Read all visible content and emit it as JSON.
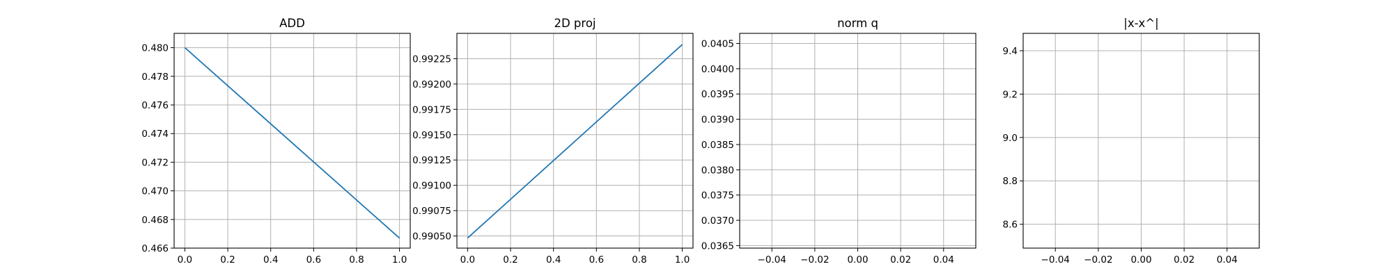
{
  "chart_data": [
    {
      "type": "line",
      "title": "ADD",
      "xlabel": "",
      "ylabel": "",
      "grid": true,
      "xlim": [
        -0.05,
        1.05
      ],
      "ylim": [
        0.466,
        0.481
      ],
      "xticks": [
        0.0,
        0.2,
        0.4,
        0.6,
        0.8,
        1.0
      ],
      "xtick_labels": [
        "0.0",
        "0.2",
        "0.4",
        "0.6",
        "0.8",
        "1.0"
      ],
      "yticks": [
        0.466,
        0.468,
        0.47,
        0.472,
        0.474,
        0.476,
        0.478,
        0.48
      ],
      "ytick_labels": [
        "0.466",
        "0.468",
        "0.470",
        "0.472",
        "0.474",
        "0.476",
        "0.478",
        "0.480"
      ],
      "series": [
        {
          "x": [
            0.0,
            1.0
          ],
          "y": [
            0.48,
            0.4667
          ],
          "color": "#1f77b4"
        }
      ]
    },
    {
      "type": "line",
      "title": "2D proj",
      "xlabel": "",
      "ylabel": "",
      "grid": true,
      "xlim": [
        -0.05,
        1.05
      ],
      "ylim": [
        0.99038,
        0.9925
      ],
      "xticks": [
        0.0,
        0.2,
        0.4,
        0.6,
        0.8,
        1.0
      ],
      "xtick_labels": [
        "0.0",
        "0.2",
        "0.4",
        "0.6",
        "0.8",
        "1.0"
      ],
      "yticks": [
        0.9905,
        0.99075,
        0.991,
        0.99125,
        0.9915,
        0.99175,
        0.992,
        0.99225
      ],
      "ytick_labels": [
        "0.99050",
        "0.99075",
        "0.99100",
        "0.99125",
        "0.99150",
        "0.99175",
        "0.99200",
        "0.99225"
      ],
      "series": [
        {
          "x": [
            0.0,
            1.0
          ],
          "y": [
            0.99048,
            0.99239
          ],
          "color": "#1f77b4"
        }
      ]
    },
    {
      "type": "line",
      "title": "norm q",
      "xlabel": "",
      "ylabel": "",
      "grid": true,
      "xlim": [
        -0.055,
        0.055
      ],
      "ylim": [
        0.03645,
        0.0407
      ],
      "xticks": [
        -0.04,
        -0.02,
        0.0,
        0.02,
        0.04
      ],
      "xtick_labels": [
        "−0.04",
        "−0.02",
        "0.00",
        "0.02",
        "0.04"
      ],
      "yticks": [
        0.0365,
        0.037,
        0.0375,
        0.038,
        0.0385,
        0.039,
        0.0395,
        0.04,
        0.0405
      ],
      "ytick_labels": [
        "0.0365",
        "0.0370",
        "0.0375",
        "0.0380",
        "0.0385",
        "0.0390",
        "0.0395",
        "0.0400",
        "0.0405"
      ],
      "series": []
    },
    {
      "type": "line",
      "title": "|x-x^|",
      "xlabel": "",
      "ylabel": "",
      "grid": true,
      "xlim": [
        -0.055,
        0.055
      ],
      "ylim": [
        8.49,
        9.48
      ],
      "xticks": [
        -0.04,
        -0.02,
        0.0,
        0.02,
        0.04
      ],
      "xtick_labels": [
        "−0.04",
        "−0.02",
        "0.00",
        "0.02",
        "0.04"
      ],
      "yticks": [
        8.6,
        8.8,
        9.0,
        9.2,
        9.4
      ],
      "ytick_labels": [
        "8.6",
        "8.8",
        "9.0",
        "9.2",
        "9.4"
      ],
      "series": []
    }
  ]
}
